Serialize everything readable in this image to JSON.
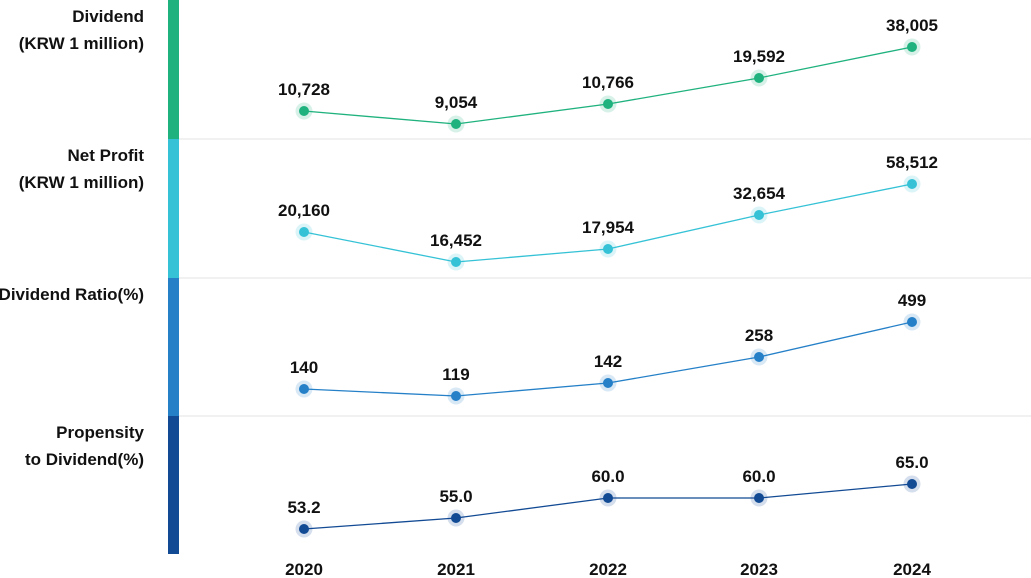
{
  "chart_data": {
    "type": "line",
    "x": [
      "2020",
      "2021",
      "2022",
      "2023",
      "2024"
    ],
    "panels": [
      {
        "label_lines": [
          "Dividend",
          "(KRW 1 million)"
        ],
        "color": "#1fb27e",
        "values": [
          10728,
          9054,
          10766,
          19592,
          38005
        ],
        "value_labels": [
          "10,728",
          "9,054",
          "10,766",
          "19,592",
          "38,005"
        ]
      },
      {
        "label_lines": [
          "Net Profit",
          "(KRW 1 million)"
        ],
        "color": "#35c2d6",
        "values": [
          20160,
          16452,
          17954,
          32654,
          58512
        ],
        "value_labels": [
          "20,160",
          "16,452",
          "17,954",
          "32,654",
          "58,512"
        ]
      },
      {
        "label_lines": [
          "Dividend Ratio(%)"
        ],
        "color": "#2580c8",
        "values": [
          140,
          119,
          142,
          258,
          499
        ],
        "value_labels": [
          "140",
          "119",
          "142",
          "258",
          "499"
        ]
      },
      {
        "label_lines": [
          "Propensity",
          "to Dividend(%)"
        ],
        "color": "#124a94",
        "values": [
          53.2,
          55.0,
          60.0,
          60.0,
          65.0
        ],
        "value_labels": [
          "53.2",
          "55.0",
          "60.0",
          "60.0",
          "65.0"
        ]
      }
    ]
  }
}
